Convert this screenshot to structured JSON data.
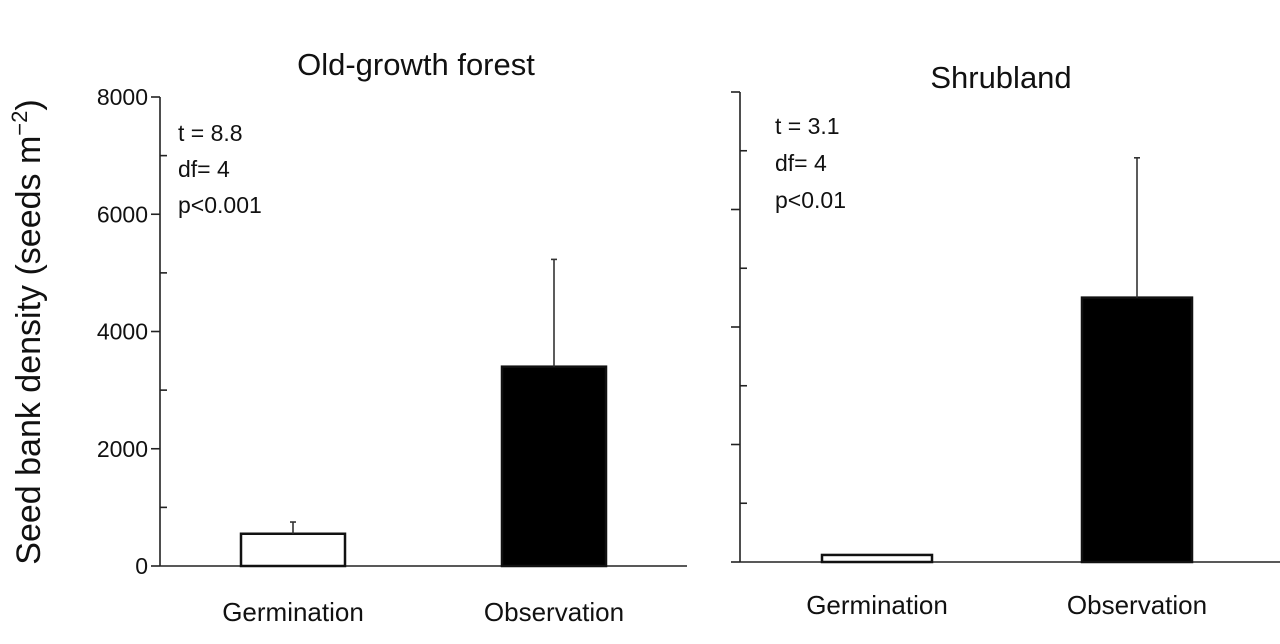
{
  "figure": {
    "ylabel_main": "Seed bank density (seeds m",
    "ylabel_sup": "−2",
    "ylabel_close": ")"
  },
  "chart_data": [
    {
      "type": "bar",
      "title": "Old-growth forest",
      "categories": [
        "Germination",
        "Observation"
      ],
      "values": [
        550,
        3400
      ],
      "errors": [
        200,
        1830
      ],
      "bar_colors": [
        "#ffffff",
        "#000000"
      ],
      "ylim": [
        0,
        8000
      ],
      "yticks": [
        0,
        2000,
        4000,
        6000,
        8000
      ],
      "minor_ticks": [
        1000,
        3000,
        5000,
        7000
      ],
      "show_tick_labels": true,
      "xlabel": "",
      "ylabel": "Seed bank density (seeds m−2)",
      "stats": [
        "t = 8.8",
        "df= 4",
        "p<0.001"
      ]
    },
    {
      "type": "bar",
      "title": "Shrubland",
      "categories": [
        "Germination",
        "Observation"
      ],
      "values": [
        120,
        4500
      ],
      "errors": [
        0,
        2380
      ],
      "bar_colors": [
        "#ffffff",
        "#000000"
      ],
      "ylim": [
        0,
        8000
      ],
      "yticks": [
        0,
        2000,
        4000,
        6000,
        8000
      ],
      "minor_ticks": [
        1000,
        3000,
        5000,
        7000
      ],
      "show_tick_labels": false,
      "xlabel": "",
      "ylabel": "",
      "stats": [
        "t = 3.1",
        "df= 4",
        "p<0.01"
      ]
    }
  ]
}
